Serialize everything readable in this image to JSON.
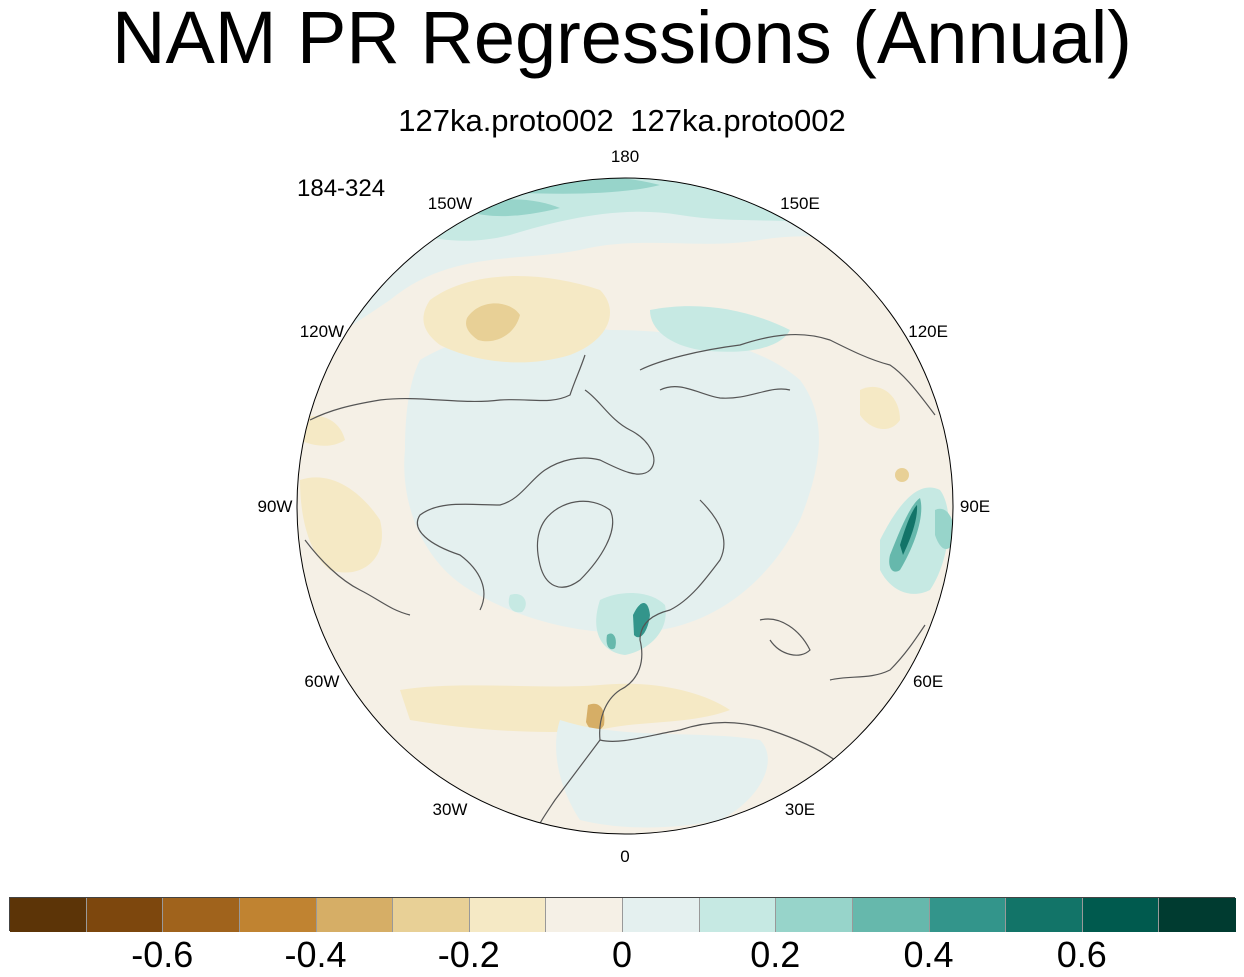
{
  "title": "NAM PR Regressions (Annual)",
  "subtitle": "127ka.proto002  127ka.proto002",
  "period": "184-324",
  "longitude_labels": [
    {
      "text": "180",
      "lon": 180
    },
    {
      "text": "150E",
      "lon": 150
    },
    {
      "text": "120E",
      "lon": 120
    },
    {
      "text": "90E",
      "lon": 90
    },
    {
      "text": "60E",
      "lon": 60
    },
    {
      "text": "30E",
      "lon": 30
    },
    {
      "text": "0",
      "lon": 0
    },
    {
      "text": "30W",
      "lon": -30
    },
    {
      "text": "60W",
      "lon": -60
    },
    {
      "text": "90W",
      "lon": -90
    },
    {
      "text": "120W",
      "lon": -120
    },
    {
      "text": "150W",
      "lon": -150
    }
  ],
  "colorbar": {
    "colors": [
      "#5c3407",
      "#7d470d",
      "#a0631c",
      "#c08331",
      "#d6ae66",
      "#e8d096",
      "#f5e9c5",
      "#f5f0e6",
      "#e4f0ef",
      "#c6e9e3",
      "#97d4ca",
      "#66b8ac",
      "#33958b",
      "#127468",
      "#005a4e",
      "#003b30"
    ],
    "labels": [
      {
        "text": "-0.6",
        "value": -0.6
      },
      {
        "text": "-0.4",
        "value": -0.4
      },
      {
        "text": "-0.2",
        "value": -0.2
      },
      {
        "text": "0",
        "value": 0
      },
      {
        "text": "0.2",
        "value": 0.2
      },
      {
        "text": "0.4",
        "value": 0.4
      },
      {
        "text": "0.6",
        "value": 0.6
      }
    ],
    "min": -0.8,
    "max": 0.8,
    "step": 0.1
  }
}
